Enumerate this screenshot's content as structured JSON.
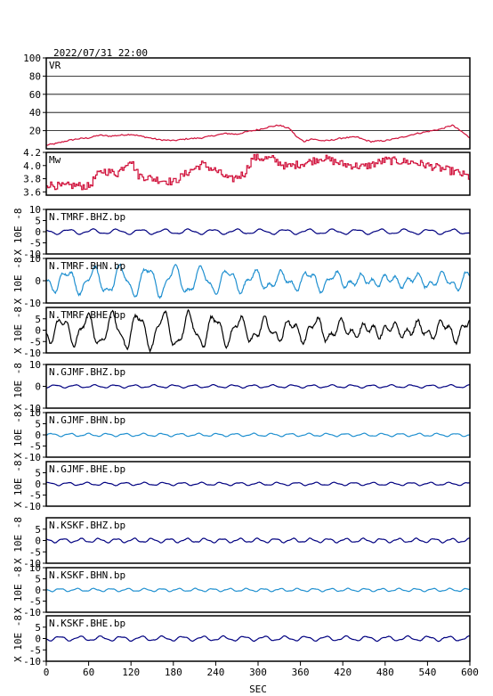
{
  "title": "2022/07/31 22:00",
  "xlabel": "SEC",
  "colors": {
    "red": "#d0103a",
    "navy": "#000080",
    "sky": "#2090d0",
    "black": "#000000"
  },
  "chart_data": {
    "type": "line",
    "x_range": [
      0,
      600
    ],
    "x_ticks": [
      0,
      60,
      120,
      180,
      240,
      300,
      360,
      420,
      480,
      540,
      600
    ],
    "panels": [
      {
        "id": "vr",
        "label": "VR",
        "ylabel": "",
        "ylim": [
          0,
          100
        ],
        "y_ticks": [
          20,
          40,
          60,
          80,
          100
        ],
        "grid": true,
        "color": "#d0103a",
        "points": [
          [
            0,
            4
          ],
          [
            15,
            6
          ],
          [
            30,
            9
          ],
          [
            45,
            11
          ],
          [
            60,
            12
          ],
          [
            75,
            15
          ],
          [
            90,
            14
          ],
          [
            105,
            15
          ],
          [
            120,
            16
          ],
          [
            140,
            13
          ],
          [
            160,
            10
          ],
          [
            180,
            9
          ],
          [
            200,
            11
          ],
          [
            220,
            12
          ],
          [
            240,
            15
          ],
          [
            255,
            17
          ],
          [
            270,
            16
          ],
          [
            285,
            19
          ],
          [
            300,
            21
          ],
          [
            315,
            24
          ],
          [
            330,
            26
          ],
          [
            345,
            22
          ],
          [
            355,
            13
          ],
          [
            365,
            8
          ],
          [
            375,
            11
          ],
          [
            390,
            9
          ],
          [
            400,
            9
          ],
          [
            420,
            12
          ],
          [
            440,
            13
          ],
          [
            450,
            10
          ],
          [
            460,
            8
          ],
          [
            480,
            9
          ],
          [
            500,
            12
          ],
          [
            520,
            16
          ],
          [
            540,
            19
          ],
          [
            560,
            22
          ],
          [
            575,
            26
          ],
          [
            590,
            18
          ],
          [
            600,
            12
          ]
        ]
      },
      {
        "id": "mw",
        "label": "Mw",
        "ylabel": "",
        "ylim": [
          3.55,
          4.2
        ],
        "y_ticks": [
          3.6,
          3.8,
          4.0,
          4.2
        ],
        "grid": false,
        "color": "#d0103a",
        "points": [
          [
            0,
            3.72
          ],
          [
            20,
            3.68
          ],
          [
            40,
            3.7
          ],
          [
            60,
            3.68
          ],
          [
            70,
            3.84
          ],
          [
            80,
            3.92
          ],
          [
            100,
            3.88
          ],
          [
            118,
            4.1
          ],
          [
            130,
            3.85
          ],
          [
            150,
            3.8
          ],
          [
            180,
            3.75
          ],
          [
            200,
            3.9
          ],
          [
            220,
            4.02
          ],
          [
            240,
            3.92
          ],
          [
            260,
            3.78
          ],
          [
            280,
            3.88
          ],
          [
            292,
            4.12
          ],
          [
            320,
            4.1
          ],
          [
            340,
            3.98
          ],
          [
            370,
            4.05
          ],
          [
            390,
            4.12
          ],
          [
            420,
            4.02
          ],
          [
            450,
            3.98
          ],
          [
            480,
            4.08
          ],
          [
            520,
            4.05
          ],
          [
            560,
            3.95
          ],
          [
            580,
            3.9
          ],
          [
            600,
            3.82
          ]
        ]
      },
      {
        "id": "tmrf-bhz",
        "label": "N.TMRF.BHZ.bp",
        "ylabel": "X 10E -8",
        "ylim": [
          -10,
          10
        ],
        "y_ticks": [
          -10,
          -5,
          0,
          5,
          10
        ],
        "grid": false,
        "color": "#000080",
        "amplitude": 1,
        "period": 34
      },
      {
        "id": "tmrf-bhn",
        "label": "N.TMRF.BHN.bp",
        "ylabel": "X 10E -8",
        "ylim": [
          -10,
          10
        ],
        "y_ticks": [
          -10,
          0,
          10
        ],
        "grid": false,
        "color": "#2090d0",
        "amplitude": 6,
        "period": 38
      },
      {
        "id": "tmrf-bhe",
        "label": "N.TMRF.BHE.bp",
        "ylabel": "X 10E -8",
        "ylim": [
          -10,
          10
        ],
        "y_ticks": [
          -10,
          -5,
          0,
          5
        ],
        "grid": false,
        "color": "#000000",
        "amplitude": 7,
        "period": 36
      },
      {
        "id": "gjmf-bhz",
        "label": "N.GJMF.BHZ.bp",
        "ylabel": "X 10E -8",
        "ylim": [
          -10,
          10
        ],
        "y_ticks": [
          -10,
          0,
          10
        ],
        "grid": false,
        "color": "#000080",
        "amplitude": 0.6,
        "period": 28
      },
      {
        "id": "gjmf-bhn",
        "label": "N.GJMF.BHN.bp",
        "ylabel": "X 10E -8",
        "ylim": [
          -10,
          10
        ],
        "y_ticks": [
          -10,
          -5,
          0,
          5,
          10
        ],
        "grid": false,
        "color": "#2090d0",
        "amplitude": 0.6,
        "period": 26
      },
      {
        "id": "gjmf-bhe",
        "label": "N.GJMF.BHE.bp",
        "ylabel": "X 10E -8",
        "ylim": [
          -10,
          10
        ],
        "y_ticks": [
          -10,
          -5,
          0,
          5
        ],
        "grid": false,
        "color": "#000080",
        "amplitude": 0.6,
        "period": 27
      },
      {
        "id": "kskf-bhz",
        "label": "N.KSKF.BHZ.bp",
        "ylabel": "X 10E -8",
        "ylim": [
          -10,
          10
        ],
        "y_ticks": [
          -10,
          -5,
          0,
          5
        ],
        "grid": false,
        "color": "#000080",
        "amplitude": 0.8,
        "period": 25
      },
      {
        "id": "kskf-bhn",
        "label": "N.KSKF.BHN.bp",
        "ylabel": "X 10E -8",
        "ylim": [
          -10,
          10
        ],
        "y_ticks": [
          -10,
          -5,
          0,
          5,
          10
        ],
        "grid": false,
        "color": "#2090d0",
        "amplitude": 0.6,
        "period": 24
      },
      {
        "id": "kskf-bhe",
        "label": "N.KSKF.BHE.bp",
        "ylabel": "X 10E -8",
        "ylim": [
          -10,
          10
        ],
        "y_ticks": [
          -10,
          -5,
          0,
          5
        ],
        "grid": false,
        "color": "#000080",
        "amplitude": 0.9,
        "period": 29
      }
    ]
  }
}
